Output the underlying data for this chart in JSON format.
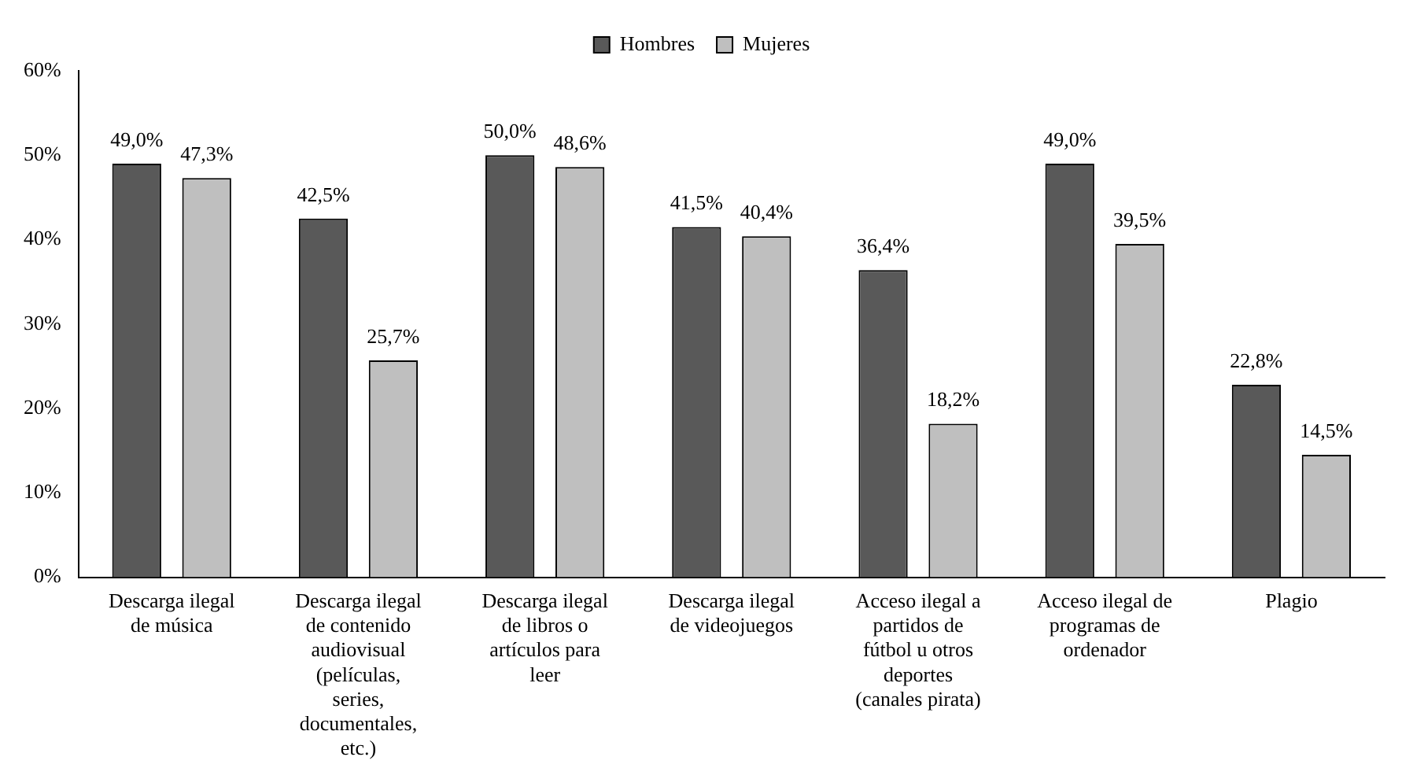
{
  "chart_data": {
    "type": "bar",
    "categories": [
      "Descarga ilegal de música",
      "Descarga ilegal de contenido audiovisual (películas, series, documentales, etc.)",
      "Descarga ilegal de libros o artículos para leer",
      "Descarga ilegal de videojuegos",
      "Acceso ilegal a partidos de fútbol u otros deportes (canales pirata)",
      "Acceso ilegal de programas de ordenador",
      "Plagio"
    ],
    "series": [
      {
        "name": "Hombres",
        "color": "#595959",
        "values": [
          49.0,
          42.5,
          50.0,
          41.5,
          36.4,
          49.0,
          22.8
        ],
        "value_labels": [
          "49,0%",
          "42,5%",
          "50,0%",
          "41,5%",
          "36,4%",
          "49,0%",
          "22,8%"
        ]
      },
      {
        "name": "Mujeres",
        "color": "#bfbfbf",
        "values": [
          47.3,
          25.7,
          48.6,
          40.4,
          18.2,
          39.5,
          14.5
        ],
        "value_labels": [
          "47,3%",
          "25,7%",
          "48,6%",
          "40,4%",
          "18,2%",
          "39,5%",
          "14,5%"
        ]
      }
    ],
    "ylim": [
      0,
      60
    ],
    "yticks": [
      {
        "value": 0,
        "label": "0%"
      },
      {
        "value": 10,
        "label": "10%"
      },
      {
        "value": 20,
        "label": "20%"
      },
      {
        "value": 30,
        "label": "30%"
      },
      {
        "value": 40,
        "label": "40%"
      },
      {
        "value": 50,
        "label": "50%"
      },
      {
        "value": 60,
        "label": "60%"
      }
    ],
    "grid": false,
    "legend": "top"
  }
}
